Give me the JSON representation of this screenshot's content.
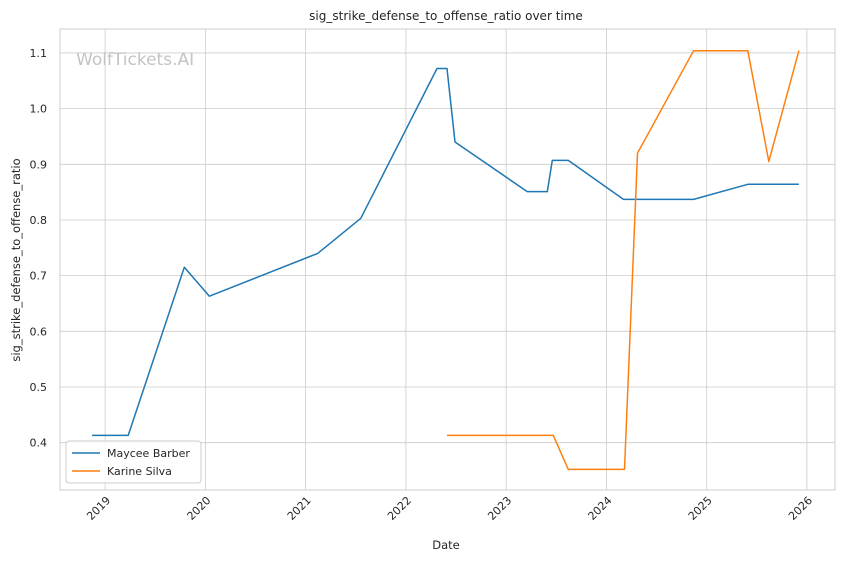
{
  "chart_data": {
    "type": "line",
    "title": "sig_strike_defense_to_offense_ratio over time",
    "xlabel": "Date",
    "ylabel": "sig_strike_defense_to_offense_ratio",
    "watermark": "WolfTickets.AI",
    "xlim": [
      2018.55,
      2026.28
    ],
    "ylim": [
      0.315,
      1.143
    ],
    "x_ticks": [
      2019,
      2020,
      2021,
      2022,
      2023,
      2024,
      2025,
      2026
    ],
    "x_tick_labels": [
      "2019",
      "2020",
      "2021",
      "2022",
      "2023",
      "2024",
      "2025",
      "2026"
    ],
    "y_ticks": [
      0.4,
      0.5,
      0.6,
      0.7,
      0.8,
      0.9,
      1.0,
      1.1
    ],
    "y_tick_labels": [
      "0.4",
      "0.5",
      "0.6",
      "0.7",
      "0.8",
      "0.9",
      "1.0",
      "1.1"
    ],
    "grid": true,
    "legend_position": "lower-left",
    "series": [
      {
        "name": "Maycee Barber",
        "color": "#1f77b4",
        "x": [
          2018.87,
          2019.23,
          2019.79,
          2020.04,
          2021.12,
          2021.55,
          2022.31,
          2022.41,
          2022.49,
          2023.21,
          2023.41,
          2023.46,
          2023.62,
          2024.17,
          2024.87,
          2025.41,
          2025.92
        ],
        "y": [
          0.413,
          0.413,
          0.715,
          0.663,
          0.74,
          0.803,
          1.072,
          1.072,
          0.94,
          0.851,
          0.851,
          0.907,
          0.907,
          0.837,
          0.837,
          0.864,
          0.864
        ]
      },
      {
        "name": "Karine Silva",
        "color": "#ff7f0e",
        "x": [
          2022.41,
          2023.47,
          2023.62,
          2024.18,
          2024.31,
          2024.87,
          2025.41,
          2025.62,
          2025.92
        ],
        "y": [
          0.413,
          0.413,
          0.352,
          0.352,
          0.92,
          1.104,
          1.104,
          0.905,
          1.104
        ]
      }
    ]
  }
}
